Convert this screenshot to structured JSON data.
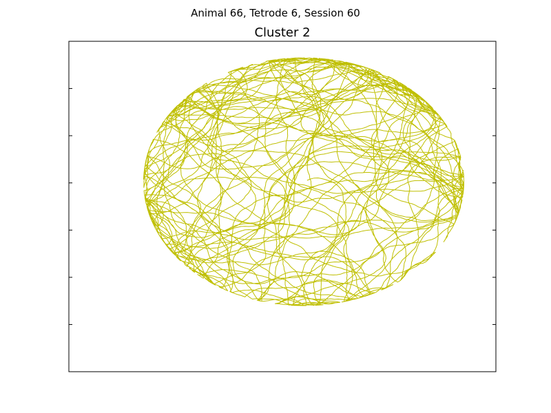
{
  "figure": {
    "suptitle": "Animal 66, Tetrode 6, Session 60"
  },
  "chart_data": {
    "type": "line",
    "title": "Cluster 2",
    "xlabel": "",
    "ylabel": "",
    "series_color": "#bfbf00",
    "axis_color": "#000000",
    "background": "#ffffff",
    "grid": false,
    "legend": "none",
    "xticks_visible": false,
    "yticks_visible": true,
    "ytick_labels_visible": false,
    "xlim": [
      -1.0,
      1.0
    ],
    "ylim": [
      -1.0,
      1.0
    ],
    "trajectory": {
      "description": "animal position trace within a circular arena",
      "center": [
        0.1,
        0.15
      ],
      "radius_x": 0.75,
      "radius_y": 0.75
    }
  }
}
